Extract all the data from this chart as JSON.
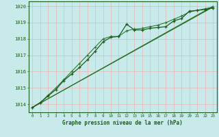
{
  "title": "Graphe pression niveau de la mer (hPa)",
  "xlabel_ticks": [
    0,
    1,
    2,
    3,
    4,
    5,
    6,
    7,
    8,
    9,
    10,
    11,
    12,
    13,
    14,
    15,
    16,
    17,
    18,
    19,
    20,
    21,
    22,
    23
  ],
  "ylim": [
    1013.5,
    1020.3
  ],
  "xlim": [
    -0.5,
    23.5
  ],
  "yticks": [
    1014,
    1015,
    1016,
    1017,
    1018,
    1019,
    1020
  ],
  "bg_color": "#c8eaea",
  "grid_color": "#e8b4b4",
  "line_color": "#1a5c1a",
  "line_color2": "#2d7a2d",
  "line1": [
    1013.8,
    1014.1,
    1014.5,
    1014.9,
    1015.45,
    1015.85,
    1016.25,
    1016.72,
    1017.25,
    1017.82,
    1018.1,
    1018.15,
    1018.9,
    1018.55,
    1018.55,
    1018.65,
    1018.7,
    1018.75,
    1019.1,
    1019.25,
    1019.7,
    1019.75,
    1019.8,
    1019.9
  ],
  "line2": [
    1013.8,
    1014.1,
    1014.55,
    1015.0,
    1015.5,
    1016.0,
    1016.5,
    1017.0,
    1017.5,
    1018.0,
    1018.15,
    1018.15,
    1018.5,
    1018.6,
    1018.65,
    1018.75,
    1018.85,
    1019.0,
    1019.2,
    1019.4,
    1019.65,
    1019.75,
    1019.85,
    1019.95
  ],
  "line3_x": [
    0,
    23
  ],
  "line3_y": [
    1013.8,
    1019.95
  ],
  "line4_x": [
    0,
    23
  ],
  "line4_y": [
    1013.8,
    1020.0
  ]
}
